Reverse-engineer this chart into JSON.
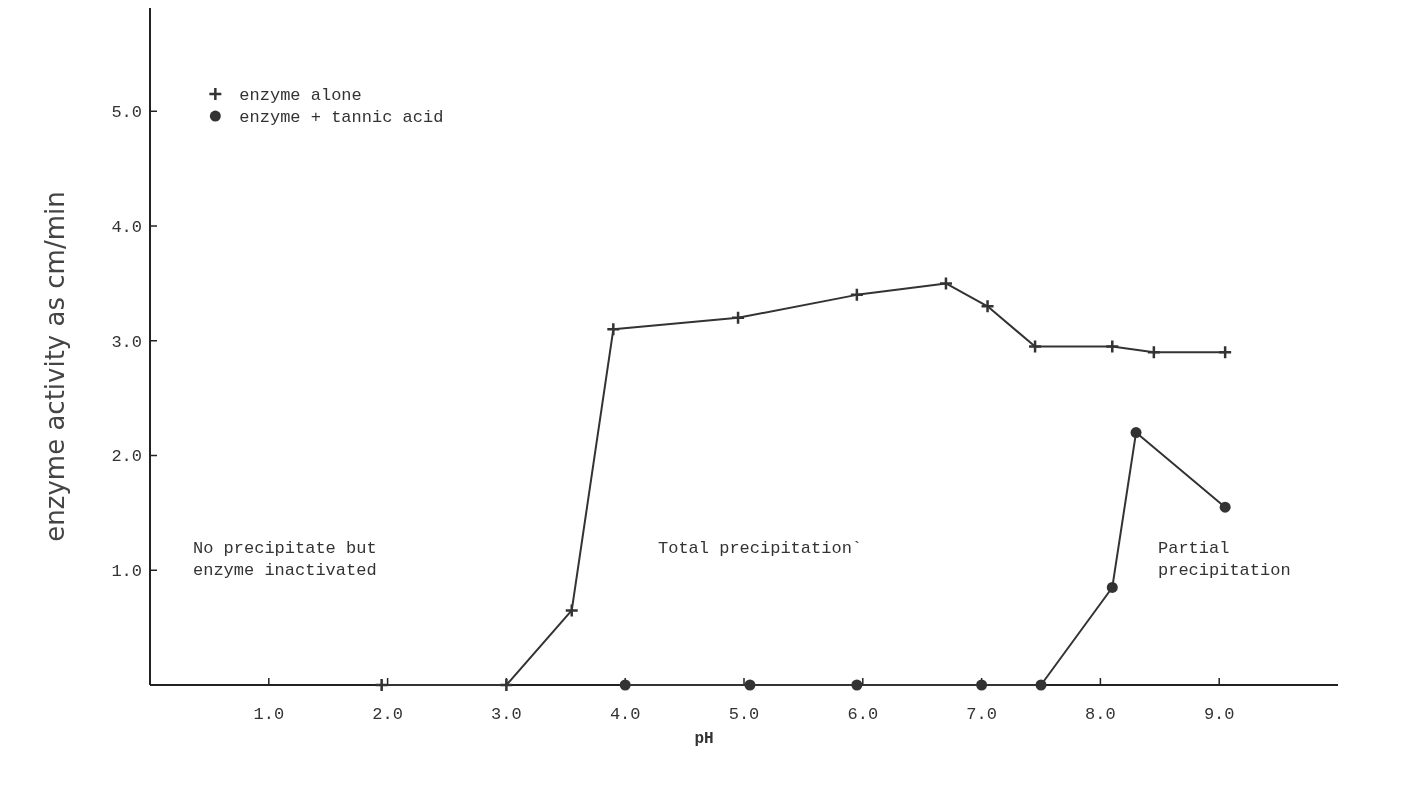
{
  "chart_data": {
    "type": "line",
    "xlabel": "pH",
    "ylabel": "enzyme activity as cm/min",
    "xlim": [
      0,
      10
    ],
    "xticks": [
      {
        "value": 1,
        "label": "1.0"
      },
      {
        "value": 2,
        "label": "2.0"
      },
      {
        "value": 3,
        "label": "3.0"
      },
      {
        "value": 4,
        "label": "4.0"
      },
      {
        "value": 5,
        "label": "5.0"
      },
      {
        "value": 6,
        "label": "6.0"
      },
      {
        "value": 7,
        "label": "7.0"
      },
      {
        "value": 8,
        "label": "8.0"
      },
      {
        "value": 9,
        "label": "9.0"
      }
    ],
    "ylim": [
      0,
      5.9
    ],
    "yticks": [
      {
        "value": 1,
        "label": "1.0"
      },
      {
        "value": 2,
        "label": "2.0"
      },
      {
        "value": 3,
        "label": "3.0"
      },
      {
        "value": 4,
        "label": "4.0"
      },
      {
        "value": 5,
        "label": "5.0"
      }
    ],
    "series": [
      {
        "name": "enzyme alone",
        "color": "#333333",
        "marker": "cross",
        "x": [
          1.95,
          3.0,
          3.55,
          3.9,
          4.95,
          5.95,
          6.7,
          7.05,
          7.45,
          8.1,
          8.45,
          9.05
        ],
        "values": [
          0,
          0,
          0.65,
          3.1,
          3.2,
          3.4,
          3.5,
          3.3,
          2.95,
          2.95,
          2.9,
          2.9
        ]
      },
      {
        "name": "enzyme + tannic acid",
        "color": "#333333",
        "marker": "circle",
        "x": [
          4.0,
          5.05,
          5.95,
          7.0,
          7.5,
          8.1,
          8.3,
          9.05
        ],
        "values": [
          0,
          0,
          0,
          0,
          0,
          0.85,
          2.2,
          1.55
        ]
      }
    ],
    "annotations": [
      "No precipitate but\nenzyme inactivated",
      "Total precipitation`",
      "Partial\nprecipitation"
    ],
    "legend": "top left",
    "line_style": "solid",
    "grid": false
  }
}
